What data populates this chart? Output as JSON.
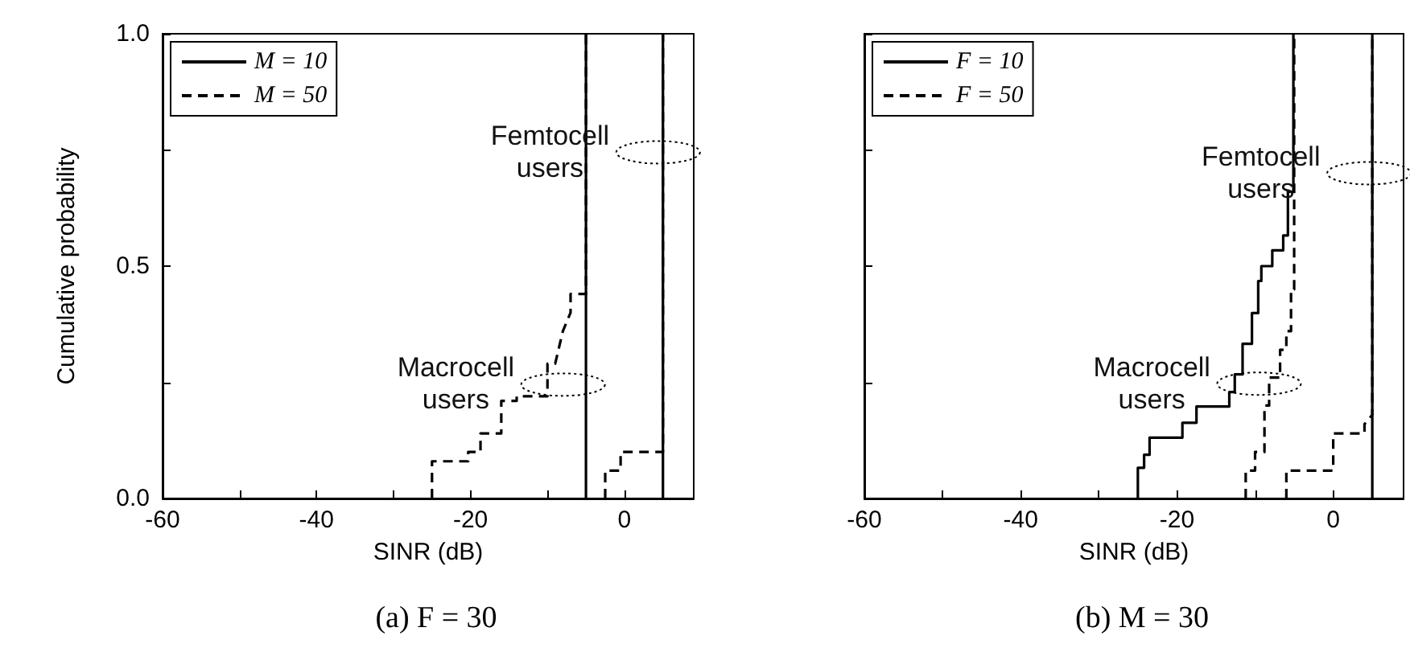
{
  "chart_data": [
    {
      "type": "line",
      "title": "(a) F = 30",
      "xlabel": "SINR (dB)",
      "ylabel": "Cumulative probability",
      "xlim": [
        -60,
        9
      ],
      "xticks": [
        -60,
        {
          "value": -50,
          "label": null
        },
        -40,
        {
          "value": -30,
          "label": null
        },
        -20,
        {
          "value": -10,
          "label": null
        },
        0
      ],
      "ylim": [
        0,
        1
      ],
      "yticks": [
        {
          "value": 0,
          "label": "0.0"
        },
        {
          "value": 0.25,
          "label": null
        },
        {
          "value": 0.5,
          "label": "0.5"
        },
        {
          "value": 0.75,
          "label": null
        },
        {
          "value": 1,
          "label": "1.0"
        }
      ],
      "grid": false,
      "legend": "top left",
      "marker": "none",
      "annotations": [
        "Macrocell\nusers",
        "Femtocell\nusers"
      ],
      "series": [
        {
          "name": "M = 10",
          "color": "#000000",
          "line_style": "solid",
          "x": [
            -5,
            -5
          ],
          "values": [
            0,
            1
          ]
        },
        {
          "color": "#000000",
          "line_style": "solid",
          "x": [
            5,
            5
          ],
          "values": [
            0,
            1
          ]
        },
        {
          "name": "M = 50",
          "color": "#000000",
          "line_style": "dashed",
          "x": [
            -25,
            -25,
            -20.3,
            -20.3,
            -18.7,
            -18.7,
            -16,
            -16,
            -14,
            -14,
            -10,
            -10,
            -9,
            -8,
            -7,
            -7,
            -5,
            -5
          ],
          "values": [
            0,
            0.08,
            0.08,
            0.1,
            0.1,
            0.14,
            0.14,
            0.21,
            0.21,
            0.22,
            0.22,
            0.29,
            0.29,
            0.36,
            0.4,
            0.44,
            0.44,
            1
          ]
        },
        {
          "color": "#000000",
          "line_style": "dashed",
          "x": [
            -2.5,
            -2.5,
            -0.5,
            -0.5,
            5,
            5
          ],
          "values": [
            0,
            0.06,
            0.06,
            0.1,
            0.1,
            1
          ]
        }
      ]
    },
    {
      "type": "line",
      "title": "(b) M = 30",
      "xlabel": "SINR (dB)",
      "xlim": [
        -60,
        9
      ],
      "xticks": [
        -60,
        {
          "value": -50,
          "label": null
        },
        -40,
        {
          "value": -30,
          "label": null
        },
        -20,
        {
          "value": -10,
          "label": null
        },
        0
      ],
      "ylim": [
        0,
        1
      ],
      "yticks": [
        0,
        0.25,
        0.5,
        0.75,
        1
      ],
      "tick_labels": "x",
      "grid": false,
      "legend": "top left",
      "marker": "none",
      "annotations": [
        "Macrocell\nusers",
        "Femtocell\nusers"
      ],
      "series": [
        {
          "name": "F = 10",
          "color": "#000000",
          "line_style": "solid",
          "x": [
            -25,
            -25,
            -24.2,
            -24.2,
            -23.5,
            -23.5,
            -19.3,
            -19.3,
            -17.5,
            -17.5,
            -13.3,
            -13.3,
            -12.6,
            -12.6,
            -11.6,
            -11.6,
            -10.4,
            -10.4,
            -9.6,
            -9.6,
            -9.2,
            -9.2,
            -7.8,
            -7.8,
            -6.4,
            -6.4,
            -5.8,
            -5.8,
            -5.1,
            -5.1
          ],
          "values": [
            0,
            0.066,
            0.066,
            0.094,
            0.094,
            0.131,
            0.131,
            0.163,
            0.163,
            0.198,
            0.198,
            0.229,
            0.229,
            0.267,
            0.267,
            0.333,
            0.333,
            0.399,
            0.399,
            0.468,
            0.468,
            0.5,
            0.5,
            0.534,
            0.534,
            0.566,
            0.566,
            0.66,
            0.66,
            1
          ]
        },
        {
          "color": "#000000",
          "line_style": "solid",
          "x": [
            5,
            5
          ],
          "values": [
            0,
            1
          ]
        },
        {
          "name": "F = 50",
          "color": "#000000",
          "line_style": "dashed",
          "x": [
            -11.2,
            -11.2,
            -10,
            -10,
            -8.8,
            -8.8,
            -8.2,
            -8.2,
            -6.8,
            -6.8,
            -6,
            -6,
            -5.4,
            -5.4,
            -5,
            -5
          ],
          "values": [
            0,
            0.06,
            0.06,
            0.1,
            0.1,
            0.2,
            0.2,
            0.26,
            0.26,
            0.32,
            0.32,
            0.36,
            0.36,
            0.45,
            0.45,
            1
          ]
        },
        {
          "color": "#000000",
          "line_style": "dashed",
          "x": [
            -6,
            -6,
            0,
            0,
            4,
            4,
            5,
            5
          ],
          "values": [
            0,
            0.06,
            0.06,
            0.14,
            0.14,
            0.16,
            0.18,
            1
          ]
        }
      ]
    }
  ]
}
